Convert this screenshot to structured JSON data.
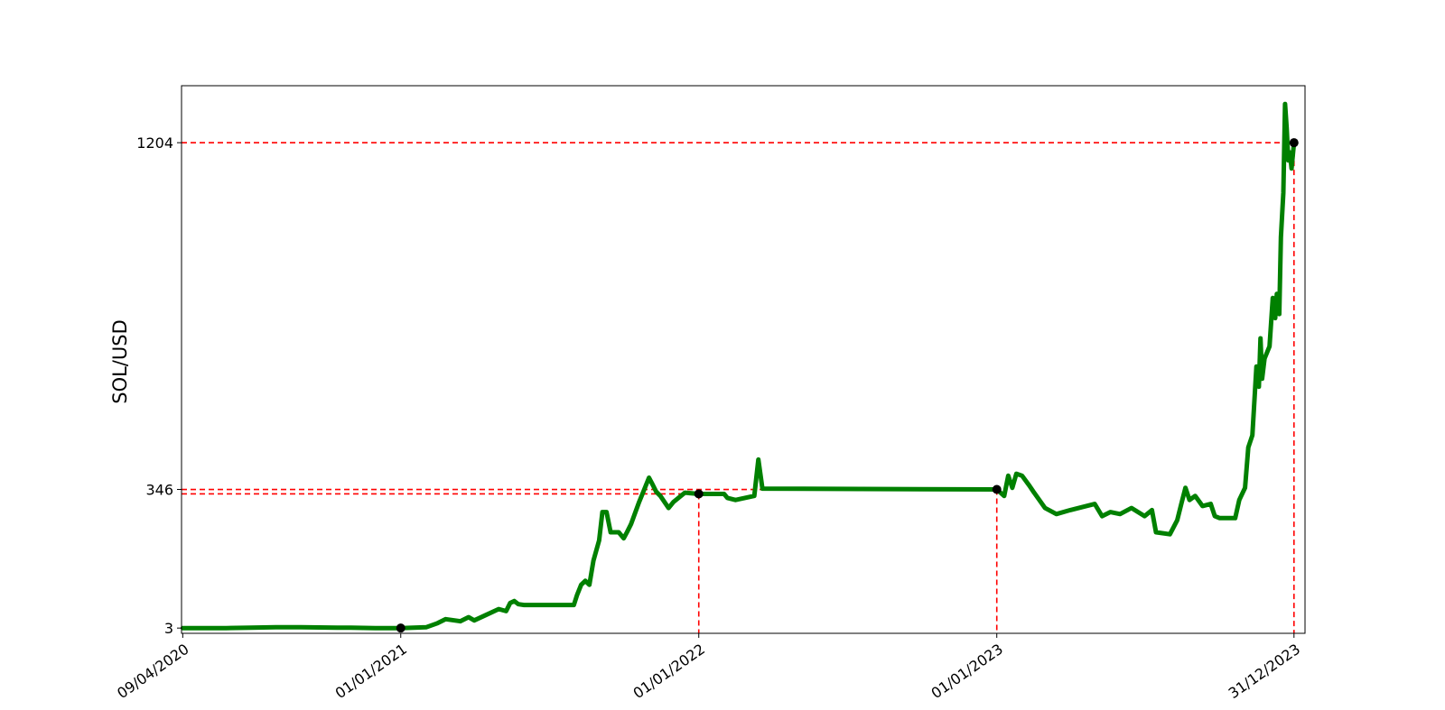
{
  "chart_data": {
    "type": "line",
    "title": "",
    "xlabel": "",
    "ylabel": "SOL/USD",
    "grid": false,
    "legend": false,
    "x_range": [
      "09/04/2020",
      "31/12/2023"
    ],
    "y_range": [
      -10,
      1345
    ],
    "x_ticks": [
      "09/04/2020",
      "01/01/2021",
      "01/01/2022",
      "01/01/2023",
      "31/12/2023"
    ],
    "y_ticks": [
      3,
      346,
      1204
    ],
    "series": [
      {
        "color": "#008000",
        "points": [
          [
            "09/04/2020",
            3
          ],
          [
            "01/06/2020",
            3
          ],
          [
            "01/07/2020",
            4
          ],
          [
            "01/08/2020",
            5
          ],
          [
            "01/09/2020",
            5
          ],
          [
            "15/10/2020",
            4
          ],
          [
            "01/11/2020",
            4
          ],
          [
            "01/12/2020",
            3
          ],
          [
            "01/01/2021",
            3
          ],
          [
            "01/02/2021",
            5
          ],
          [
            "15/02/2021",
            15
          ],
          [
            "25/02/2021",
            25
          ],
          [
            "15/03/2021",
            20
          ],
          [
            "25/03/2021",
            30
          ],
          [
            "01/04/2021",
            22
          ],
          [
            "15/04/2021",
            35
          ],
          [
            "01/05/2021",
            50
          ],
          [
            "10/05/2021",
            45
          ],
          [
            "15/05/2021",
            65
          ],
          [
            "20/05/2021",
            70
          ],
          [
            "25/05/2021",
            62
          ],
          [
            "01/06/2021",
            60
          ],
          [
            "01/08/2021",
            60
          ],
          [
            "05/08/2021",
            85
          ],
          [
            "10/08/2021",
            110
          ],
          [
            "15/08/2021",
            120
          ],
          [
            "20/08/2021",
            110
          ],
          [
            "25/08/2021",
            170
          ],
          [
            "01/09/2021",
            220
          ],
          [
            "05/09/2021",
            290
          ],
          [
            "10/09/2021",
            290
          ],
          [
            "15/09/2021",
            240
          ],
          [
            "25/09/2021",
            240
          ],
          [
            "01/10/2021",
            225
          ],
          [
            "05/10/2021",
            240
          ],
          [
            "10/10/2021",
            260
          ],
          [
            "20/10/2021",
            315
          ],
          [
            "25/10/2021",
            340
          ],
          [
            "01/11/2021",
            375
          ],
          [
            "05/11/2021",
            360
          ],
          [
            "10/11/2021",
            340
          ],
          [
            "15/11/2021",
            330
          ],
          [
            "25/11/2021",
            300
          ],
          [
            "01/12/2021",
            315
          ],
          [
            "15/12/2021",
            338
          ],
          [
            "01/01/2022",
            335
          ],
          [
            "01/02/2022",
            335
          ],
          [
            "05/02/2022",
            325
          ],
          [
            "15/02/2022",
            320
          ],
          [
            "10/03/2022",
            330
          ],
          [
            "15/03/2022",
            420
          ],
          [
            "20/03/2022",
            348
          ],
          [
            "31/12/2022",
            346
          ],
          [
            "01/01/2023",
            346
          ],
          [
            "10/01/2023",
            330
          ],
          [
            "15/01/2023",
            380
          ],
          [
            "20/01/2023",
            350
          ],
          [
            "25/01/2023",
            385
          ],
          [
            "01/02/2023",
            380
          ],
          [
            "10/02/2023",
            355
          ],
          [
            "15/02/2023",
            340
          ],
          [
            "01/03/2023",
            300
          ],
          [
            "15/03/2023",
            285
          ],
          [
            "01/04/2023",
            295
          ],
          [
            "01/05/2023",
            310
          ],
          [
            "10/05/2023",
            280
          ],
          [
            "20/05/2023",
            290
          ],
          [
            "01/06/2023",
            285
          ],
          [
            "15/06/2023",
            300
          ],
          [
            "01/07/2023",
            280
          ],
          [
            "10/07/2023",
            295
          ],
          [
            "15/07/2023",
            240
          ],
          [
            "01/08/2023",
            235
          ],
          [
            "10/08/2023",
            270
          ],
          [
            "15/08/2023",
            310
          ],
          [
            "20/08/2023",
            350
          ],
          [
            "25/08/2023",
            320
          ],
          [
            "01/09/2023",
            330
          ],
          [
            "10/09/2023",
            305
          ],
          [
            "20/09/2023",
            310
          ],
          [
            "25/09/2023",
            280
          ],
          [
            "01/10/2023",
            275
          ],
          [
            "20/10/2023",
            275
          ],
          [
            "25/10/2023",
            320
          ],
          [
            "01/11/2023",
            350
          ],
          [
            "05/11/2023",
            450
          ],
          [
            "10/11/2023",
            480
          ],
          [
            "15/11/2023",
            650
          ],
          [
            "18/11/2023",
            600
          ],
          [
            "20/11/2023",
            720
          ],
          [
            "22/11/2023",
            620
          ],
          [
            "25/11/2023",
            670
          ],
          [
            "01/12/2023",
            700
          ],
          [
            "05/12/2023",
            820
          ],
          [
            "08/12/2023",
            770
          ],
          [
            "10/12/2023",
            830
          ],
          [
            "13/12/2023",
            780
          ],
          [
            "15/12/2023",
            970
          ],
          [
            "18/12/2023",
            1080
          ],
          [
            "20/12/2023",
            1300
          ],
          [
            "22/12/2023",
            1240
          ],
          [
            "24/12/2023",
            1160
          ],
          [
            "26/12/2023",
            1180
          ],
          [
            "28/12/2023",
            1140
          ],
          [
            "31/12/2023",
            1204
          ]
        ]
      }
    ],
    "markers": [
      {
        "date": "01/01/2021",
        "value": 3
      },
      {
        "date": "01/01/2022",
        "value": 335
      },
      {
        "date": "01/01/2023",
        "value": 346
      },
      {
        "date": "31/12/2023",
        "value": 1204
      }
    ],
    "reference_lines": [
      {
        "date": "01/01/2022",
        "value": 335
      },
      {
        "date": "01/01/2023",
        "value": 346
      },
      {
        "date": "31/12/2023",
        "value": 1204
      }
    ],
    "colors": {
      "line": "#008000",
      "reference": "#ff0000",
      "marker": "#000000"
    }
  }
}
